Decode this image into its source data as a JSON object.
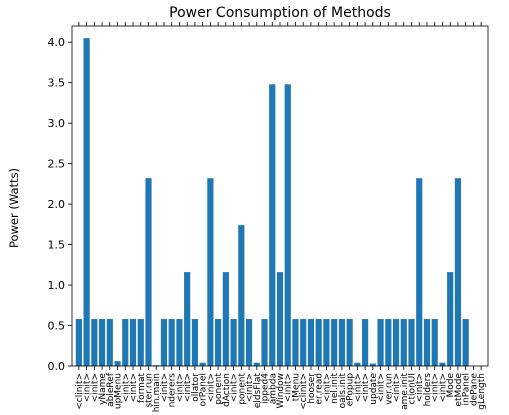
{
  "chart_data": {
    "type": "bar",
    "title": "Power Consumption of Methods",
    "xlabel": "",
    "ylabel": "Power (Watts)",
    "ylim": [
      0,
      4.2
    ],
    "yticks": [
      "0.0",
      "0.5",
      "1.0",
      "1.5",
      "2.0",
      "2.5",
      "3.0",
      "3.5",
      "4.0"
    ],
    "bar_color": "#1f77b4",
    "categories": [
      "<clinit>",
      "<init>",
      "<init>",
      "yName",
      "ableRef",
      "upMenu",
      "<init>",
      "<init>",
      "format",
      "ster.run",
      "hin.main",
      "<init>",
      "nderers",
      "<init>",
      "<init>",
      "ollator",
      "orPanel",
      "<init>",
      "ponent",
      "dAction",
      "<init>",
      "ponent",
      "<init>",
      "eldsFlat",
      "ipped4",
      "ambda",
      "Window",
      "<init>",
      "tMenu",
      "<clinit>",
      "hooser",
      "er.read",
      "<init>",
      "nel.init",
      "oals.init",
      "ePopup",
      "<init>",
      "<init>",
      "update",
      "<init>",
      "ver.run",
      "<init>",
      "ame.init",
      "ctionUI",
      "<init>",
      "holders",
      "<init>",
      "<init>",
      "Mode",
      "etMode",
      "inPanel",
      "dePane",
      "gLength"
    ],
    "values": [
      0.58,
      4.05,
      0.58,
      0.58,
      0.58,
      0.06,
      0.58,
      0.58,
      0.58,
      2.32,
      0.01,
      0.58,
      0.58,
      0.58,
      1.16,
      0.58,
      0.04,
      2.32,
      0.58,
      1.16,
      0.58,
      1.74,
      0.58,
      0.04,
      0.58,
      3.48,
      1.16,
      3.48,
      0.58,
      0.58,
      0.58,
      0.58,
      0.58,
      0.58,
      0.58,
      0.58,
      0.04,
      0.58,
      0.03,
      0.58,
      0.58,
      0.58,
      0.58,
      0.58,
      2.32,
      0.58,
      0.58,
      0.04,
      1.16,
      2.32,
      0.58,
      0.0,
      0.0
    ]
  }
}
